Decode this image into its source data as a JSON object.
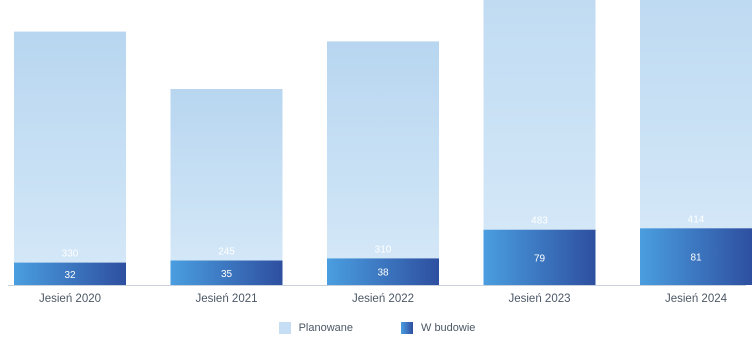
{
  "chart_data": {
    "type": "bar",
    "stacked": true,
    "categories": [
      "Jesień 2020",
      "Jesień 2021",
      "Jesień 2022",
      "Jesień 2023",
      "Jesień 2024"
    ],
    "series": [
      {
        "name": "W budowie",
        "values": [
          32,
          35,
          38,
          79,
          81
        ],
        "color": "#2e5fac"
      },
      {
        "name": "Planowane",
        "values": [
          330,
          245,
          310,
          483,
          414
        ],
        "color": "#c5def3"
      }
    ],
    "ylim": [
      0,
      800
    ],
    "grid": false,
    "legend": "bottom-center"
  },
  "colors": {
    "planned_light": "#d3e7f7",
    "planned_dark": "#b8d6f0",
    "build_light": "#4a9ee0",
    "build_dark": "#2e4fa0",
    "axis": "#c9d2dc"
  }
}
